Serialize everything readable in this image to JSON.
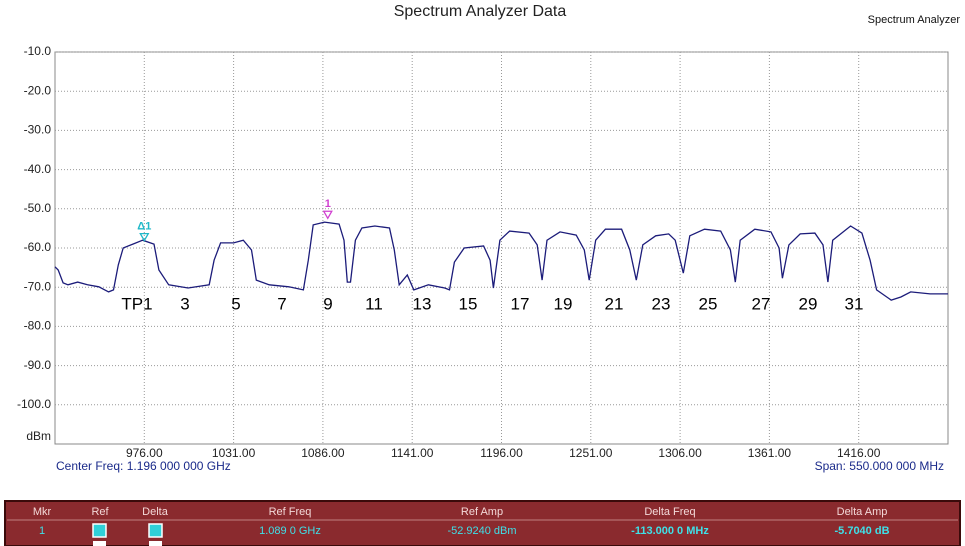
{
  "chart_data": {
    "type": "line",
    "title": "Spectrum Analyzer Data",
    "window_label": "Spectrum Analyzer",
    "y_label": "dBm",
    "footer_left": "Center Freq: 1.196 000 000 GHz",
    "footer_right": "Span: 550.000 000 MHz",
    "xlim": [
      921,
      1471
    ],
    "ylim": [
      -110,
      -10
    ],
    "grid": true,
    "xticks": [
      {
        "value": 976,
        "label": "976.00"
      },
      {
        "value": 1031,
        "label": "1031.00"
      },
      {
        "value": 1086,
        "label": "1086.00"
      },
      {
        "value": 1141,
        "label": "1141.00"
      },
      {
        "value": 1196,
        "label": "1196.00"
      },
      {
        "value": 1251,
        "label": "1251.00"
      },
      {
        "value": 1306,
        "label": "1306.00"
      },
      {
        "value": 1361,
        "label": "1361.00"
      },
      {
        "value": 1416,
        "label": "1416.00"
      }
    ],
    "yticks": [
      {
        "value": -10,
        "label": "-10.0"
      },
      {
        "value": -20,
        "label": "-20.0"
      },
      {
        "value": -30,
        "label": "-30.0"
      },
      {
        "value": -40,
        "label": "-40.0"
      },
      {
        "value": -50,
        "label": "-50.0"
      },
      {
        "value": -60,
        "label": "-60.0"
      },
      {
        "value": -70,
        "label": "-70.0"
      },
      {
        "value": -80,
        "label": "-80.0"
      },
      {
        "value": -90,
        "label": "-90.0"
      },
      {
        "value": -100,
        "label": "-100.0"
      }
    ],
    "x": [
      921,
      923,
      926,
      929,
      935,
      941,
      948,
      954,
      957,
      960,
      963,
      969,
      975,
      982,
      985,
      991,
      1003,
      1016,
      1019,
      1023,
      1031,
      1037,
      1042,
      1045,
      1053,
      1065,
      1074,
      1077,
      1080,
      1087,
      1096,
      1099,
      1101,
      1103,
      1106,
      1110,
      1118,
      1127,
      1130,
      1133,
      1138,
      1142,
      1151,
      1161,
      1164,
      1167,
      1173,
      1185,
      1189,
      1191,
      1195,
      1201,
      1213,
      1218,
      1221,
      1224,
      1232,
      1242,
      1247,
      1250,
      1254,
      1260,
      1270,
      1275,
      1279,
      1283,
      1291,
      1299,
      1303,
      1308,
      1312,
      1321,
      1331,
      1337,
      1340,
      1343,
      1352,
      1362,
      1367,
      1369,
      1373,
      1380,
      1389,
      1394,
      1397,
      1400,
      1411,
      1418,
      1423,
      1427,
      1436,
      1442,
      1448,
      1460,
      1471
    ],
    "series": [
      {
        "color": "#1c1c7a",
        "values": [
          -64.8,
          -65.6,
          -68.9,
          -69.4,
          -68.7,
          -69.4,
          -69.9,
          -71.2,
          -70.7,
          -64.3,
          -60.0,
          -59.0,
          -58.0,
          -59.0,
          -65.6,
          -69.4,
          -70.2,
          -69.4,
          -63.1,
          -58.7,
          -58.7,
          -58.0,
          -60.5,
          -68.2,
          -69.4,
          -69.9,
          -70.7,
          -63.1,
          -54.1,
          -53.4,
          -53.9,
          -58.0,
          -68.7,
          -68.7,
          -58.0,
          -54.9,
          -54.4,
          -54.9,
          -60.5,
          -69.4,
          -66.9,
          -70.7,
          -69.4,
          -70.2,
          -70.7,
          -63.6,
          -60.0,
          -59.5,
          -63.1,
          -70.2,
          -58.0,
          -55.7,
          -56.2,
          -59.2,
          -68.2,
          -58.0,
          -55.9,
          -56.7,
          -60.5,
          -68.2,
          -58.0,
          -55.2,
          -55.2,
          -60.5,
          -68.2,
          -59.2,
          -56.9,
          -56.4,
          -58.0,
          -66.4,
          -56.9,
          -55.2,
          -55.7,
          -60.5,
          -68.7,
          -58.0,
          -55.2,
          -55.9,
          -60.0,
          -67.7,
          -59.2,
          -56.4,
          -56.2,
          -59.2,
          -68.7,
          -58.0,
          -54.4,
          -56.2,
          -63.1,
          -70.7,
          -73.3,
          -72.5,
          -71.2,
          -71.7,
          -71.7
        ]
      }
    ],
    "channel_labels": [
      "TP1",
      "3",
      "5",
      "7",
      "9",
      "11",
      "13",
      "15",
      "17",
      "19",
      "21",
      "23",
      "25",
      "27",
      "29",
      "31"
    ],
    "markers": [
      {
        "label": "1",
        "x": 1089,
        "y": -52.924,
        "color": "#d040d0"
      },
      {
        "label": "Δ1",
        "x": 976,
        "y": -58.628,
        "color": "#20b8c8"
      }
    ]
  },
  "marker_table": {
    "headers": [
      "Mkr",
      "Ref",
      "Delta",
      "Ref Freq",
      "Ref Amp",
      "Delta Freq",
      "Delta Amp"
    ],
    "rows": [
      {
        "mkr": "1",
        "ref_freq": "1.089 0 GHz",
        "ref_amp": "-52.9240 dBm",
        "delta_freq": "-113.000 0 MHz",
        "delta_amp": "-5.7040 dB"
      }
    ]
  }
}
